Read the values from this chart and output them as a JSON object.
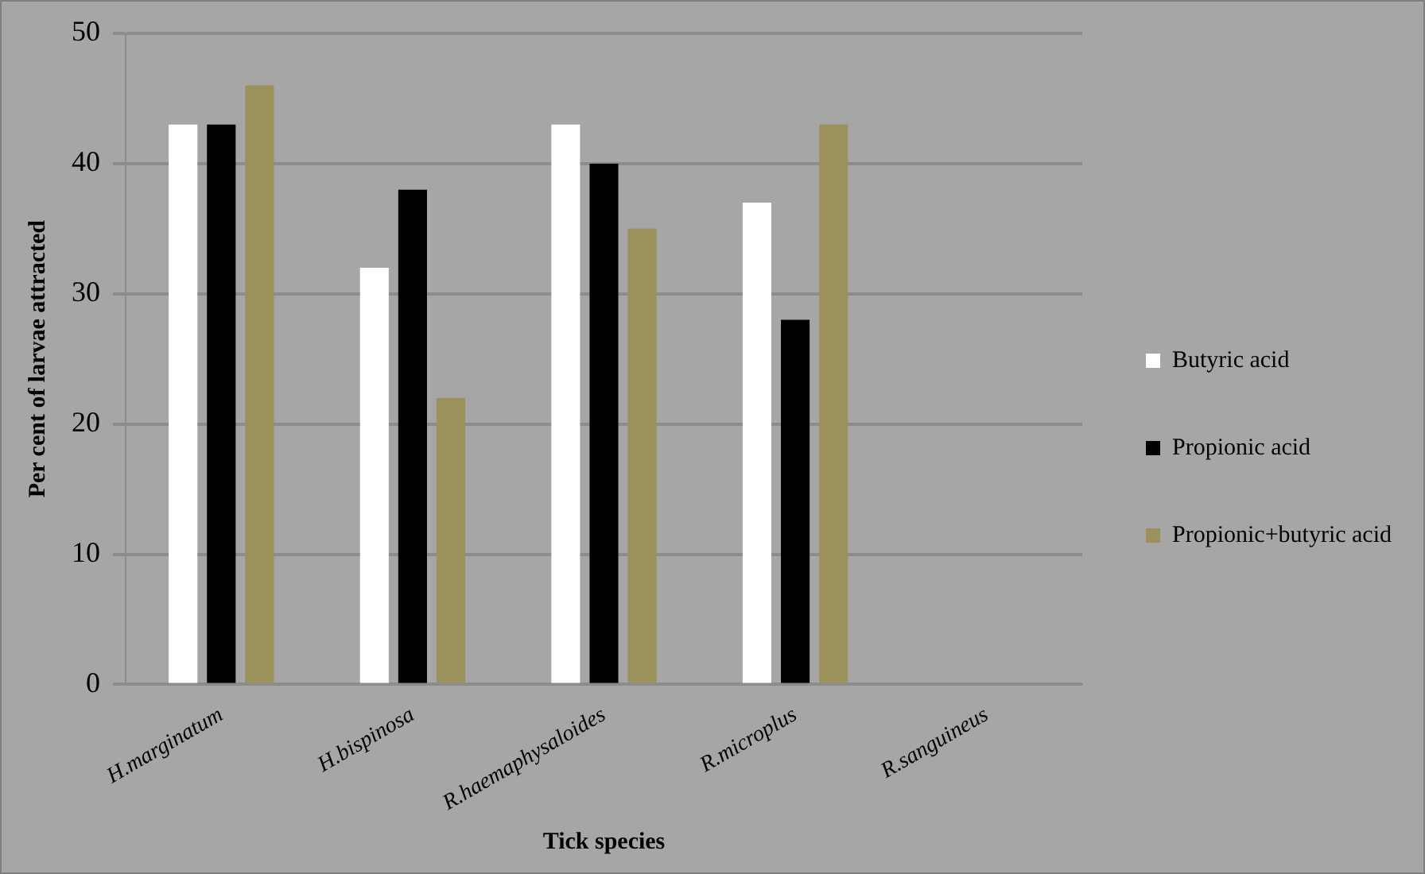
{
  "chart_data": {
    "type": "bar",
    "xlabel": "Tick species",
    "ylabel": "Per cent of larvae attracted",
    "categories": [
      "H.marginatum",
      "H.bispinosa",
      "R.haemaphysaloides",
      "R.microplus",
      "R.sanguineus"
    ],
    "series": [
      {
        "name": "Butyric acid",
        "color": "#ffffff",
        "values": [
          43,
          32,
          43,
          37,
          0
        ]
      },
      {
        "name": "Propionic acid",
        "color": "#000000",
        "values": [
          43,
          38,
          40,
          28,
          0
        ]
      },
      {
        "name": "Propionic+butyric acid",
        "color": "#9b915a",
        "values": [
          46,
          22,
          35,
          43,
          0
        ]
      }
    ],
    "ylim": [
      0,
      50
    ],
    "yticks": [
      0,
      10,
      20,
      30,
      40,
      50
    ],
    "grid": "y",
    "legend": "right"
  }
}
